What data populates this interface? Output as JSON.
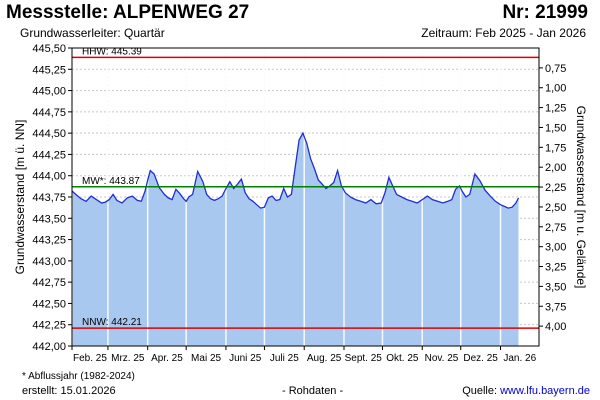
{
  "header": {
    "title": "Messstelle: ALPENWEG 27",
    "number": "Nr: 21999",
    "aquifer": "Grundwasserleiter: Quartär",
    "period": "Zeitraum: Feb 2025 - Jan 2026"
  },
  "footer": {
    "footnote": "* Abflussjahr (1982-2024)",
    "created": "erstellt:  15.01.2026",
    "raw": "- Rohdaten -",
    "source_label": "Quelle:",
    "source_link": "www.lfu.bayern.de"
  },
  "colors": {
    "area_fill": "#a9c8f0",
    "line": "#1f2fd0",
    "hhw_line": "#e00000",
    "nnw_line": "#e00000",
    "mw_line": "#008000",
    "grid": "#c8c8c8",
    "month_divider": "#ffffff"
  },
  "chart_data": {
    "type": "area",
    "ylabel": "Grundwasserstand [m ü. NN]",
    "y2label": "Grundwasserstand [m u. Gelände]",
    "ylim": [
      442.0,
      445.5
    ],
    "y2lim": [
      4.25,
      0.5
    ],
    "y_ticks": [
      "445,50",
      "445,25",
      "445,00",
      "444,75",
      "444,50",
      "444,25",
      "444,00",
      "443,75",
      "443,50",
      "443,25",
      "443,00",
      "442,75",
      "442,50",
      "442,25",
      "442,00"
    ],
    "y_tick_values": [
      445.5,
      445.25,
      445.0,
      444.75,
      444.5,
      444.25,
      444.0,
      443.75,
      443.5,
      443.25,
      443.0,
      442.75,
      442.5,
      442.25,
      442.0
    ],
    "y2_ticks": [
      "0,75",
      "1,00",
      "1,25",
      "1,50",
      "1,75",
      "2,00",
      "2,25",
      "2,50",
      "2,75",
      "3,00",
      "3,25",
      "3,50",
      "3,75",
      "4,00"
    ],
    "y2_tick_values": [
      0.75,
      1.0,
      1.25,
      1.5,
      1.75,
      2.0,
      2.25,
      2.5,
      2.75,
      3.0,
      3.25,
      3.5,
      3.75,
      4.0
    ],
    "x_range": [
      "2025-02-01",
      "2026-01-31"
    ],
    "month_ticks": [
      "Feb. 25",
      "Mrz. 25",
      "Apr. 25",
      "Mai 25",
      "Juni 25",
      "Juli 25",
      "Aug. 25",
      "Sept. 25",
      "Okt. 25",
      "Nov. 25",
      "Dez. 25",
      "Jan. 26"
    ],
    "month_dates": [
      "2025-02-01",
      "2025-03-01",
      "2025-04-01",
      "2025-05-01",
      "2025-06-01",
      "2025-07-01",
      "2025-08-01",
      "2025-09-01",
      "2025-10-01",
      "2025-11-01",
      "2025-12-01",
      "2026-01-01"
    ],
    "reference_lines": [
      {
        "label": "HHW: 445.39",
        "value": 445.39
      },
      {
        "label": "MW*: 443.87",
        "value": 443.87
      },
      {
        "label": "NNW: 442.21",
        "value": 442.21
      }
    ],
    "grid": true,
    "series": [
      {
        "x": [
          "2025-02-01",
          "2025-02-04",
          "2025-02-08",
          "2025-02-12",
          "2025-02-16",
          "2025-02-20",
          "2025-02-24",
          "2025-02-27",
          "2025-03-02",
          "2025-03-05",
          "2025-03-08",
          "2025-03-12",
          "2025-03-16",
          "2025-03-20",
          "2025-03-24",
          "2025-03-27",
          "2025-03-30",
          "2025-04-01",
          "2025-04-03",
          "2025-04-06",
          "2025-04-10",
          "2025-04-14",
          "2025-04-17",
          "2025-04-20",
          "2025-04-23",
          "2025-04-26",
          "2025-04-29",
          "2025-05-01",
          "2025-05-03",
          "2025-05-06",
          "2025-05-10",
          "2025-05-14",
          "2025-05-17",
          "2025-05-20",
          "2025-05-23",
          "2025-05-26",
          "2025-05-29",
          "2025-06-01",
          "2025-06-04",
          "2025-06-07",
          "2025-06-10",
          "2025-06-13",
          "2025-06-16",
          "2025-06-19",
          "2025-06-22",
          "2025-06-25",
          "2025-06-28",
          "2025-07-01",
          "2025-07-04",
          "2025-07-07",
          "2025-07-10",
          "2025-07-13",
          "2025-07-16",
          "2025-07-19",
          "2025-07-22",
          "2025-07-25",
          "2025-07-28",
          "2025-07-31",
          "2025-08-03",
          "2025-08-06",
          "2025-08-09",
          "2025-08-12",
          "2025-08-15",
          "2025-08-18",
          "2025-08-21",
          "2025-08-24",
          "2025-08-27",
          "2025-08-30",
          "2025-09-02",
          "2025-09-06",
          "2025-09-10",
          "2025-09-14",
          "2025-09-18",
          "2025-09-22",
          "2025-09-26",
          "2025-09-30",
          "2025-10-03",
          "2025-10-06",
          "2025-10-09",
          "2025-10-12",
          "2025-10-16",
          "2025-10-20",
          "2025-10-24",
          "2025-10-28",
          "2025-11-01",
          "2025-11-05",
          "2025-11-09",
          "2025-11-13",
          "2025-11-17",
          "2025-11-21",
          "2025-11-24",
          "2025-11-27",
          "2025-11-30",
          "2025-12-02",
          "2025-12-05",
          "2025-12-08",
          "2025-12-12",
          "2025-12-16",
          "2025-12-20",
          "2025-12-24",
          "2025-12-28",
          "2026-01-01",
          "2026-01-04",
          "2026-01-07",
          "2026-01-10",
          "2026-01-13",
          "2026-01-15"
        ],
        "values": [
          443.82,
          443.78,
          443.73,
          443.7,
          443.76,
          443.72,
          443.68,
          443.69,
          443.72,
          443.78,
          443.71,
          443.68,
          443.74,
          443.76,
          443.71,
          443.7,
          443.82,
          443.95,
          444.06,
          444.02,
          443.86,
          443.78,
          443.74,
          443.72,
          443.84,
          443.79,
          443.73,
          443.7,
          443.75,
          443.78,
          444.05,
          443.93,
          443.78,
          443.73,
          443.71,
          443.73,
          443.76,
          443.85,
          443.93,
          443.85,
          443.9,
          443.96,
          443.8,
          443.73,
          443.7,
          443.66,
          443.62,
          443.63,
          443.74,
          443.76,
          443.71,
          443.72,
          443.85,
          443.75,
          443.78,
          444.1,
          444.42,
          444.5,
          444.38,
          444.2,
          444.08,
          443.95,
          443.9,
          443.85,
          443.88,
          443.92,
          444.06,
          443.88,
          443.8,
          443.75,
          443.72,
          443.7,
          443.68,
          443.72,
          443.67,
          443.68,
          443.8,
          443.98,
          443.88,
          443.78,
          443.75,
          443.72,
          443.7,
          443.68,
          443.72,
          443.76,
          443.72,
          443.7,
          443.68,
          443.7,
          443.72,
          443.84,
          443.88,
          443.82,
          443.75,
          443.78,
          444.02,
          443.94,
          443.83,
          443.76,
          443.7,
          443.66,
          443.64,
          443.62,
          443.63,
          443.68,
          443.74
        ]
      }
    ]
  }
}
